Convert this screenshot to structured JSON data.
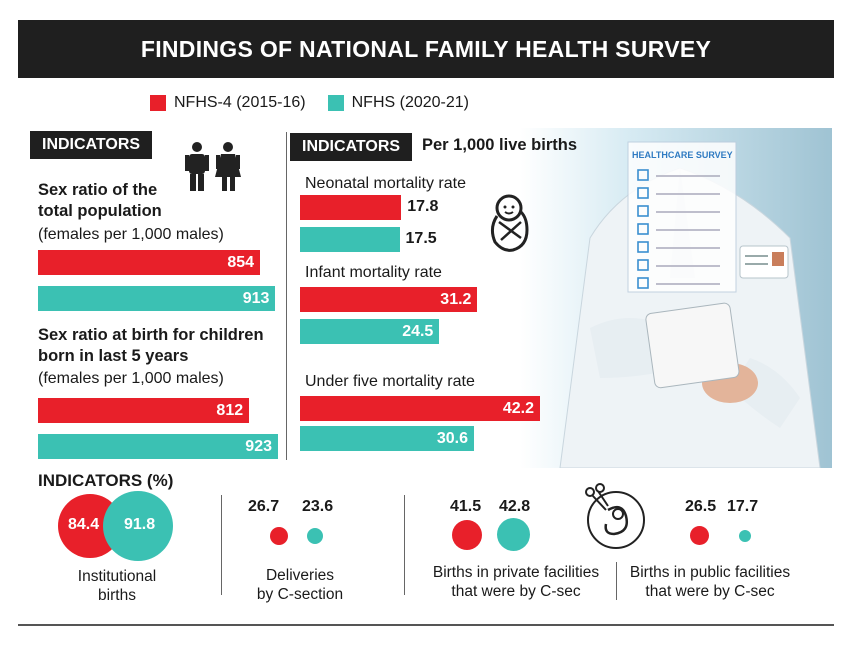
{
  "title": "FINDINGS OF NATIONAL FAMILY HEALTH SURVEY",
  "legend": [
    {
      "label": "NFHS-4 (2015-16)",
      "color": "#e8202a"
    },
    {
      "label": "NFHS (2020-21)",
      "color": "#3bc1b3"
    }
  ],
  "left_panel": {
    "header": "INDICATORS",
    "icon": "male-female-icon",
    "group1": {
      "title_line1": "Sex ratio of the",
      "title_line2": "total population",
      "subtitle": "(females per 1,000 males)"
    },
    "group2": {
      "title_line1": "Sex ratio at birth for children",
      "title_line2": "born in last 5 years",
      "subtitle": "(females per 1,000 males)"
    }
  },
  "middle_panel": {
    "header": "INDICATORS",
    "unit": "Per 1,000 live births",
    "icon": "swaddled-baby-icon",
    "labels": [
      "Neonatal mortality rate",
      "Infant mortality rate",
      "Under five mortality rate"
    ]
  },
  "photo": {
    "clipboard_title": "HEALTHCARE SURVEY",
    "icon": "doctor-with-tablet-photo"
  },
  "bottom": {
    "header": "INDICATORS (%)",
    "institutional": {
      "v1": "84.4",
      "v2": "91.8",
      "caption_line1": "Institutional",
      "caption_line2": "births"
    },
    "csection": {
      "v1": "26.7",
      "v2": "23.6",
      "caption_line1": "Deliveries",
      "caption_line2": "by C-section"
    },
    "private": {
      "v1": "41.5",
      "v2": "42.8",
      "caption_line1": "Births in private facilities",
      "caption_line2": "that were by C-sec"
    },
    "public": {
      "v1": "26.5",
      "v2": "17.7",
      "caption_line1": "Births in public facilities",
      "caption_line2": "that were by C-sec"
    },
    "icon": "fetus-scissors-icon"
  },
  "chart_data": [
    {
      "type": "bar",
      "orientation": "horizontal",
      "title": "",
      "categories": [
        "Sex ratio of the total population",
        "Sex ratio at birth for children born in last 5 years"
      ],
      "series": [
        {
          "name": "NFHS-4 (2015-16)",
          "values": [
            854,
            812
          ]
        },
        {
          "name": "NFHS (2020-21)",
          "values": [
            913,
            923
          ]
        }
      ],
      "xlim": [
        0,
        923
      ]
    },
    {
      "type": "bar",
      "orientation": "horizontal",
      "title": "",
      "categories": [
        "Neonatal mortality rate",
        "Infant mortality rate",
        "Under five mortality rate"
      ],
      "series": [
        {
          "name": "NFHS-4 (2015-16)",
          "values": [
            17.8,
            31.2,
            42.2
          ]
        },
        {
          "name": "NFHS (2020-21)",
          "values": [
            17.5,
            24.5,
            30.6
          ]
        }
      ],
      "xlim": [
        0,
        42.2
      ]
    },
    {
      "type": "bubble",
      "title": "",
      "categories": [
        "Institutional births",
        "Deliveries by C-section",
        "Births in private facilities that were by C-sec",
        "Births in public facilities that were by C-sec"
      ],
      "series": [
        {
          "name": "NFHS-4 (2015-16)",
          "values": [
            84.4,
            26.7,
            41.5,
            26.5
          ]
        },
        {
          "name": "NFHS (2020-21)",
          "values": [
            91.8,
            23.6,
            42.8,
            17.7
          ]
        }
      ]
    }
  ]
}
